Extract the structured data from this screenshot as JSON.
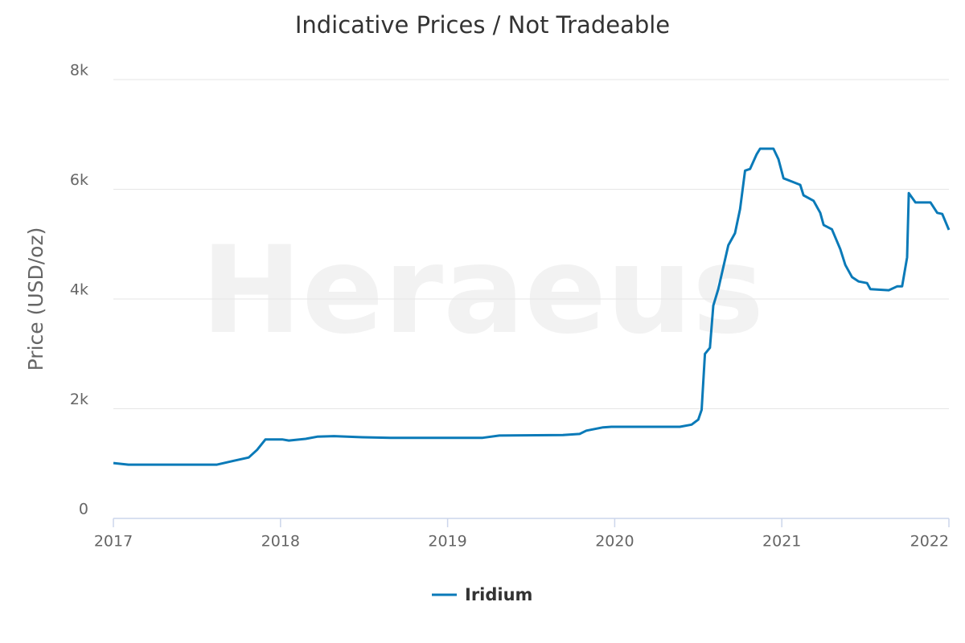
{
  "chart_data": {
    "type": "line",
    "title": "Indicative Prices / Not Tradeable",
    "y_label": "Price (USD/oz)",
    "watermark": "Heraeus",
    "xlim": [
      2017,
      2022
    ],
    "xticks": [
      2017,
      2018,
      2019,
      2020,
      2021,
      2022
    ],
    "ylim": [
      0,
      8000
    ],
    "yticks": [
      0,
      {
        "value": 2000,
        "label": "2k"
      },
      {
        "value": 4000,
        "label": "4k"
      },
      {
        "value": 6000,
        "label": "6k"
      },
      {
        "value": 8000,
        "label": "8k"
      }
    ],
    "grid": true,
    "legend": "bottom",
    "series": [
      {
        "name": "Iridium",
        "color": "#0a7ab8",
        "x": [
          2017.0,
          2017.09,
          2017.62,
          2017.72,
          2017.81,
          2017.86,
          2017.91,
          2018.01,
          2018.05,
          2018.15,
          2018.22,
          2018.32,
          2018.49,
          2018.66,
          2019.21,
          2019.31,
          2019.69,
          2019.79,
          2019.83,
          2019.93,
          2019.98,
          2020.39,
          2020.46,
          2020.5,
          2020.52,
          2020.54,
          2020.57,
          2020.59,
          2020.62,
          2020.68,
          2020.72,
          2020.75,
          2020.78,
          2020.81,
          2020.85,
          2020.87,
          2020.95,
          2020.98,
          2021.01,
          2021.06,
          2021.11,
          2021.13,
          2021.19,
          2021.23,
          2021.25,
          2021.3,
          2021.35,
          2021.38,
          2021.42,
          2021.46,
          2021.51,
          2021.53,
          2021.64,
          2021.69,
          2021.72,
          2021.75,
          2021.76,
          2021.8,
          2021.89,
          2021.93,
          2021.96,
          2022.0
        ],
        "values": [
          1010,
          980,
          980,
          1050,
          1110,
          1250,
          1440,
          1440,
          1420,
          1450,
          1490,
          1500,
          1480,
          1470,
          1470,
          1510,
          1520,
          1540,
          1600,
          1660,
          1670,
          1670,
          1710,
          1800,
          1980,
          3000,
          3110,
          3880,
          4180,
          4980,
          5200,
          5640,
          6340,
          6370,
          6640,
          6740,
          6740,
          6550,
          6200,
          6140,
          6080,
          5890,
          5790,
          5570,
          5350,
          5270,
          4910,
          4620,
          4400,
          4320,
          4290,
          4180,
          4160,
          4230,
          4230,
          4760,
          5930,
          5760,
          5760,
          5570,
          5550,
          5260
        ]
      }
    ]
  }
}
